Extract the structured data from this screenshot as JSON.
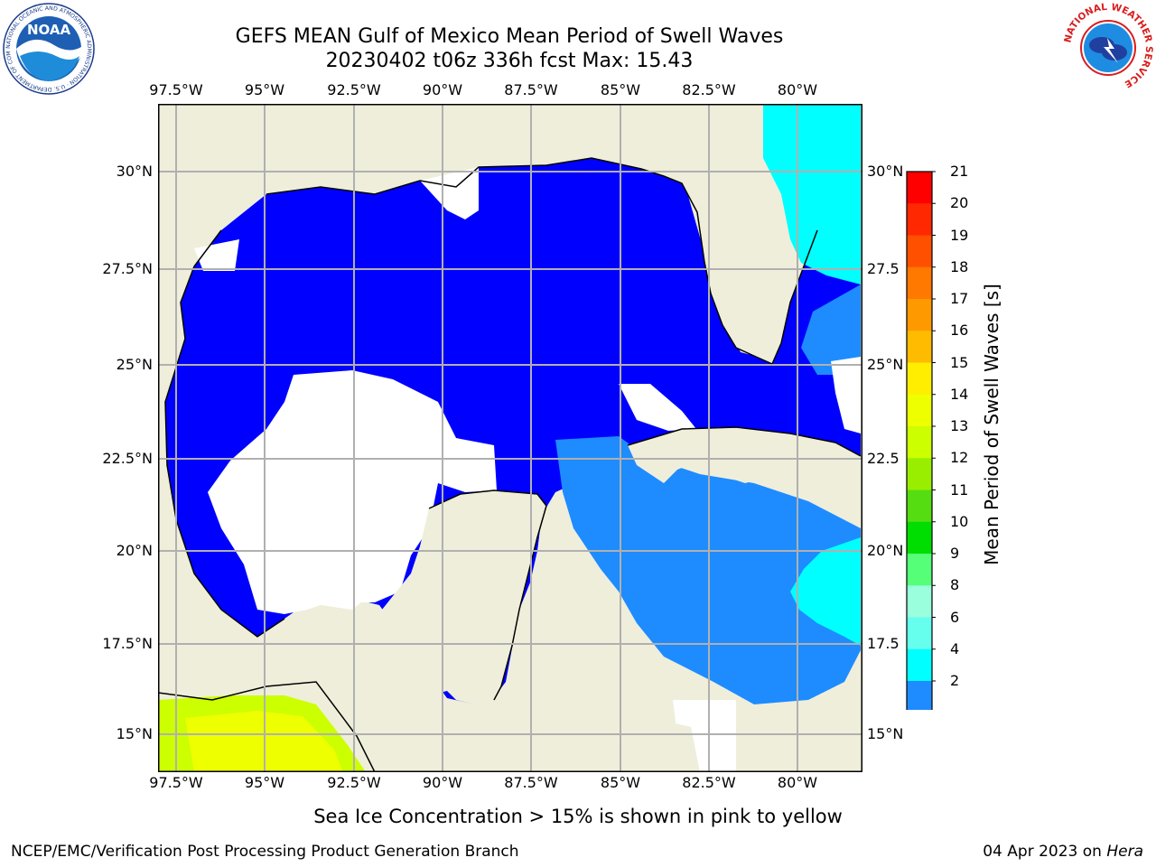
{
  "title": {
    "line1": "GEFS MEAN Gulf of Mexico Mean Period of Swell Waves",
    "line2": "20230402 t06z 336h fcst   Max: 15.43"
  },
  "logos": {
    "noaa": {
      "text": "NOAA",
      "ring_text": "NATIONAL OCEANIC AND ATMOSPHERIC ADMINISTRATION · U.S. DEPARTMENT OF COMMERCE",
      "icon": "noaa-logo-icon"
    },
    "nws": {
      "ring_text": "NATIONAL WEATHER SERVICE",
      "icon": "nws-logo-icon"
    }
  },
  "map": {
    "lon_labels": [
      "97.5°W",
      "95°W",
      "92.5°W",
      "90°W",
      "87.5°W",
      "85°W",
      "82.5°W",
      "80°W"
    ],
    "lat_labels_left": [
      "30°N",
      "27.5°N",
      "25°N",
      "22.5°N",
      "20°N",
      "17.5°N",
      "15°N"
    ],
    "lat_labels_right": [
      "30°N",
      "27.5",
      "25°N",
      "22.5",
      "20°N",
      "17.5",
      "15°N"
    ],
    "extent": {
      "lon_min": -98.0,
      "lon_max": -79.0,
      "lat_min": 14.0,
      "lat_max": 31.8
    },
    "colors": {
      "land": "#efeedb",
      "period_2_4": "#0000ff",
      "period_4_6": "#1e8cff",
      "period_6_8": "#00ffff",
      "gridline": "#b0b0b0",
      "no_swell": "#ffffff",
      "sea_ice_low": "#ccff00",
      "sea_ice_high": "#eeff00"
    }
  },
  "colorbar": {
    "title": "Mean Period of Swell Waves [s]",
    "labels": [
      "21",
      "20",
      "19",
      "18",
      "17",
      "16",
      "15",
      "14",
      "13",
      "12",
      "11",
      "10",
      "9",
      "8",
      "6",
      "4",
      "2"
    ],
    "colors": [
      "#ff0000",
      "#ff2800",
      "#ff5000",
      "#ff7800",
      "#ff9900",
      "#ffbb00",
      "#ffee00",
      "#eeff00",
      "#ccff00",
      "#99ee00",
      "#55dd11",
      "#00dd00",
      "#55ff77",
      "#99ffdd",
      "#66ffee",
      "#00ffff",
      "#1e8cff"
    ],
    "extend_color": "#0000ff"
  },
  "sea_ice_note": "Sea Ice Concentration > 15% is shown in pink to yellow",
  "footer": {
    "left": "NCEP/EMC/Verification Post Processing Product Generation Branch",
    "date": "04 Apr 2023 on ",
    "host": "Hera"
  }
}
